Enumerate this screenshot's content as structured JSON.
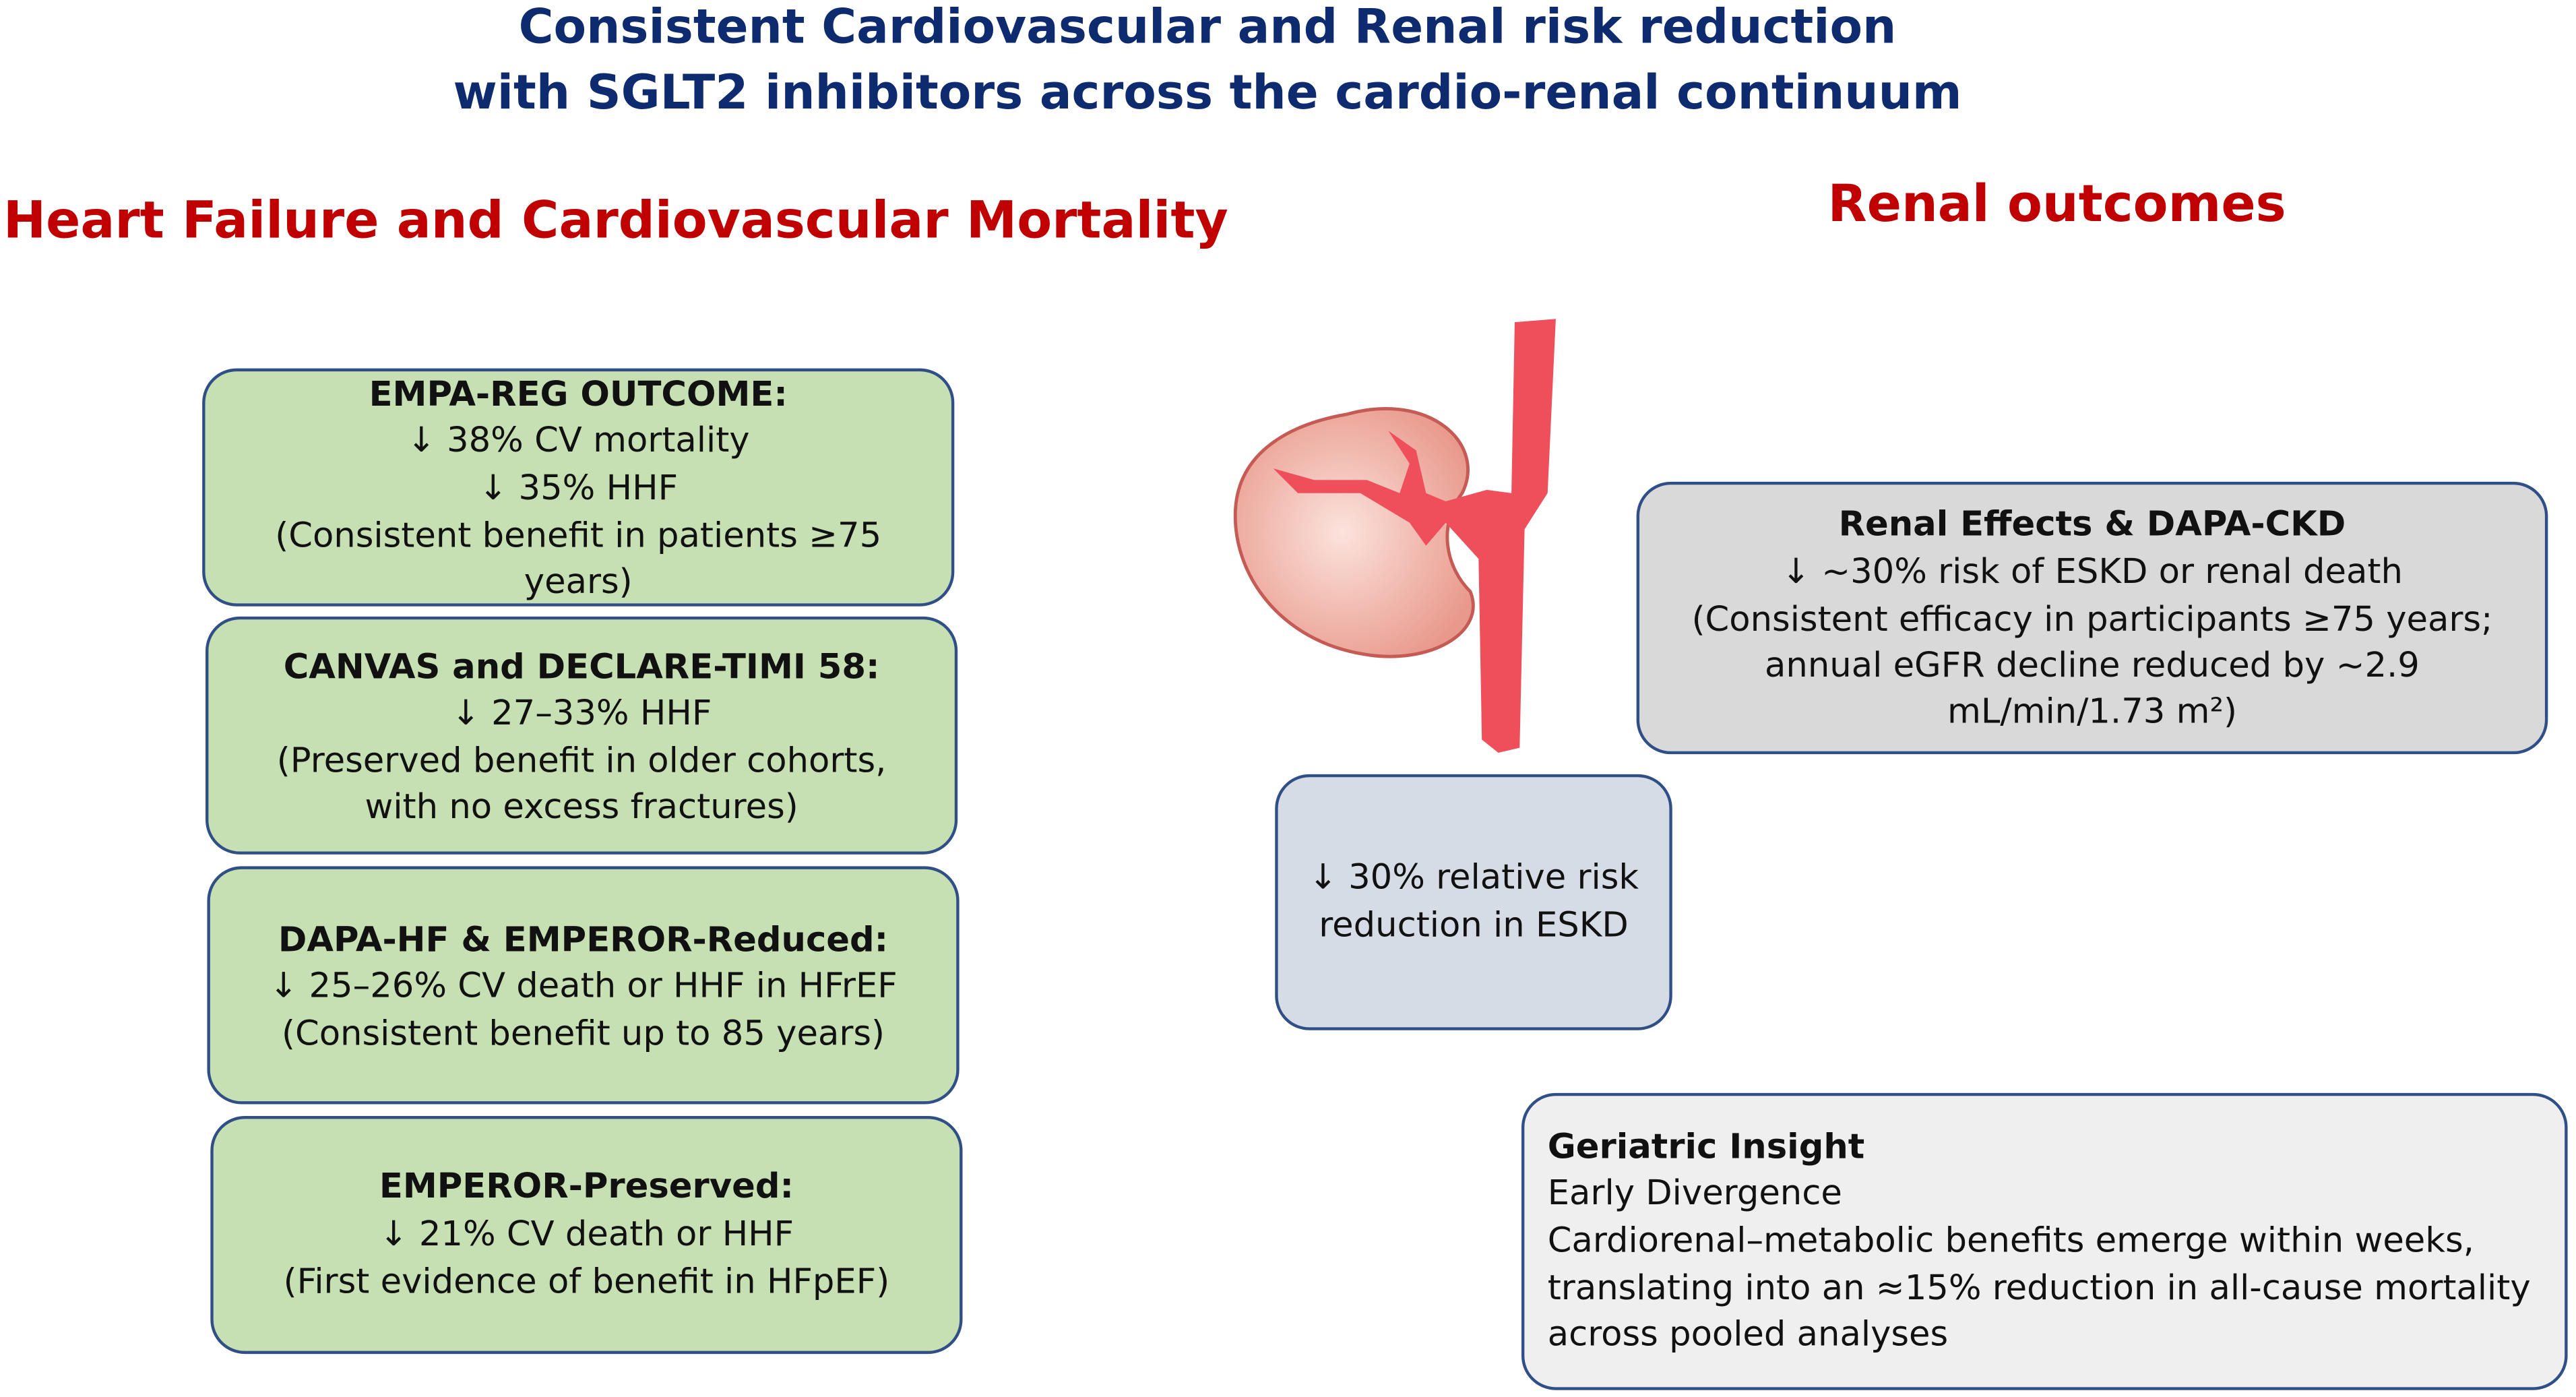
{
  "header": {
    "title_lines": [
      "Consistent Cardiovascular and Renal risk reduction",
      "with SGLT2 inhibitors across the cardio-renal continuum"
    ]
  },
  "left_section": {
    "heading": "Heart Failure and Cardiovascular Mortality",
    "boxes": [
      {
        "title": "EMPA-REG OUTCOME:",
        "lines": [
          "↓ 38% CV mortality",
          "↓ 35% HHF",
          "(Consistent benefit in patients ≥75",
          "years)"
        ]
      },
      {
        "title": "CANVAS and DECLARE-TIMI 58:",
        "lines": [
          "↓ 27–33% HHF",
          "(Preserved benefit in older cohorts,",
          "with no excess fractures)"
        ]
      },
      {
        "title": "DAPA-HF & EMPEROR-Reduced:",
        "lines": [
          "↓ 25–26% CV death or HHF in HFrEF",
          "(Consistent benefit up to 85 years)"
        ]
      },
      {
        "title": "EMPEROR-Preserved:",
        "lines": [
          "↓ 21% CV death or HHF",
          "(First evidence of benefit in HFpEF)"
        ]
      }
    ]
  },
  "right_section": {
    "heading": "Renal outcomes",
    "renal_box": {
      "title": "Renal Effects & DAPA-CKD",
      "lines": [
        "↓ ~30% risk of ESKD or renal death",
        "(Consistent efficacy in participants ≥75 years;",
        "annual eGFR decline reduced by ~2.9",
        "mL/min/1.73 m²)"
      ]
    },
    "eskd_box": {
      "lines": [
        "↓ 30% relative risk",
        "reduction in ESKD"
      ]
    },
    "insight_box": {
      "title": "Geriatric Insight",
      "lines": [
        "Early Divergence",
        "Cardiorenal–metabolic benefits emerge within weeks,",
        "translating into an ≈15% reduction in all-cause mortality",
        "across pooled analyses"
      ]
    }
  }
}
